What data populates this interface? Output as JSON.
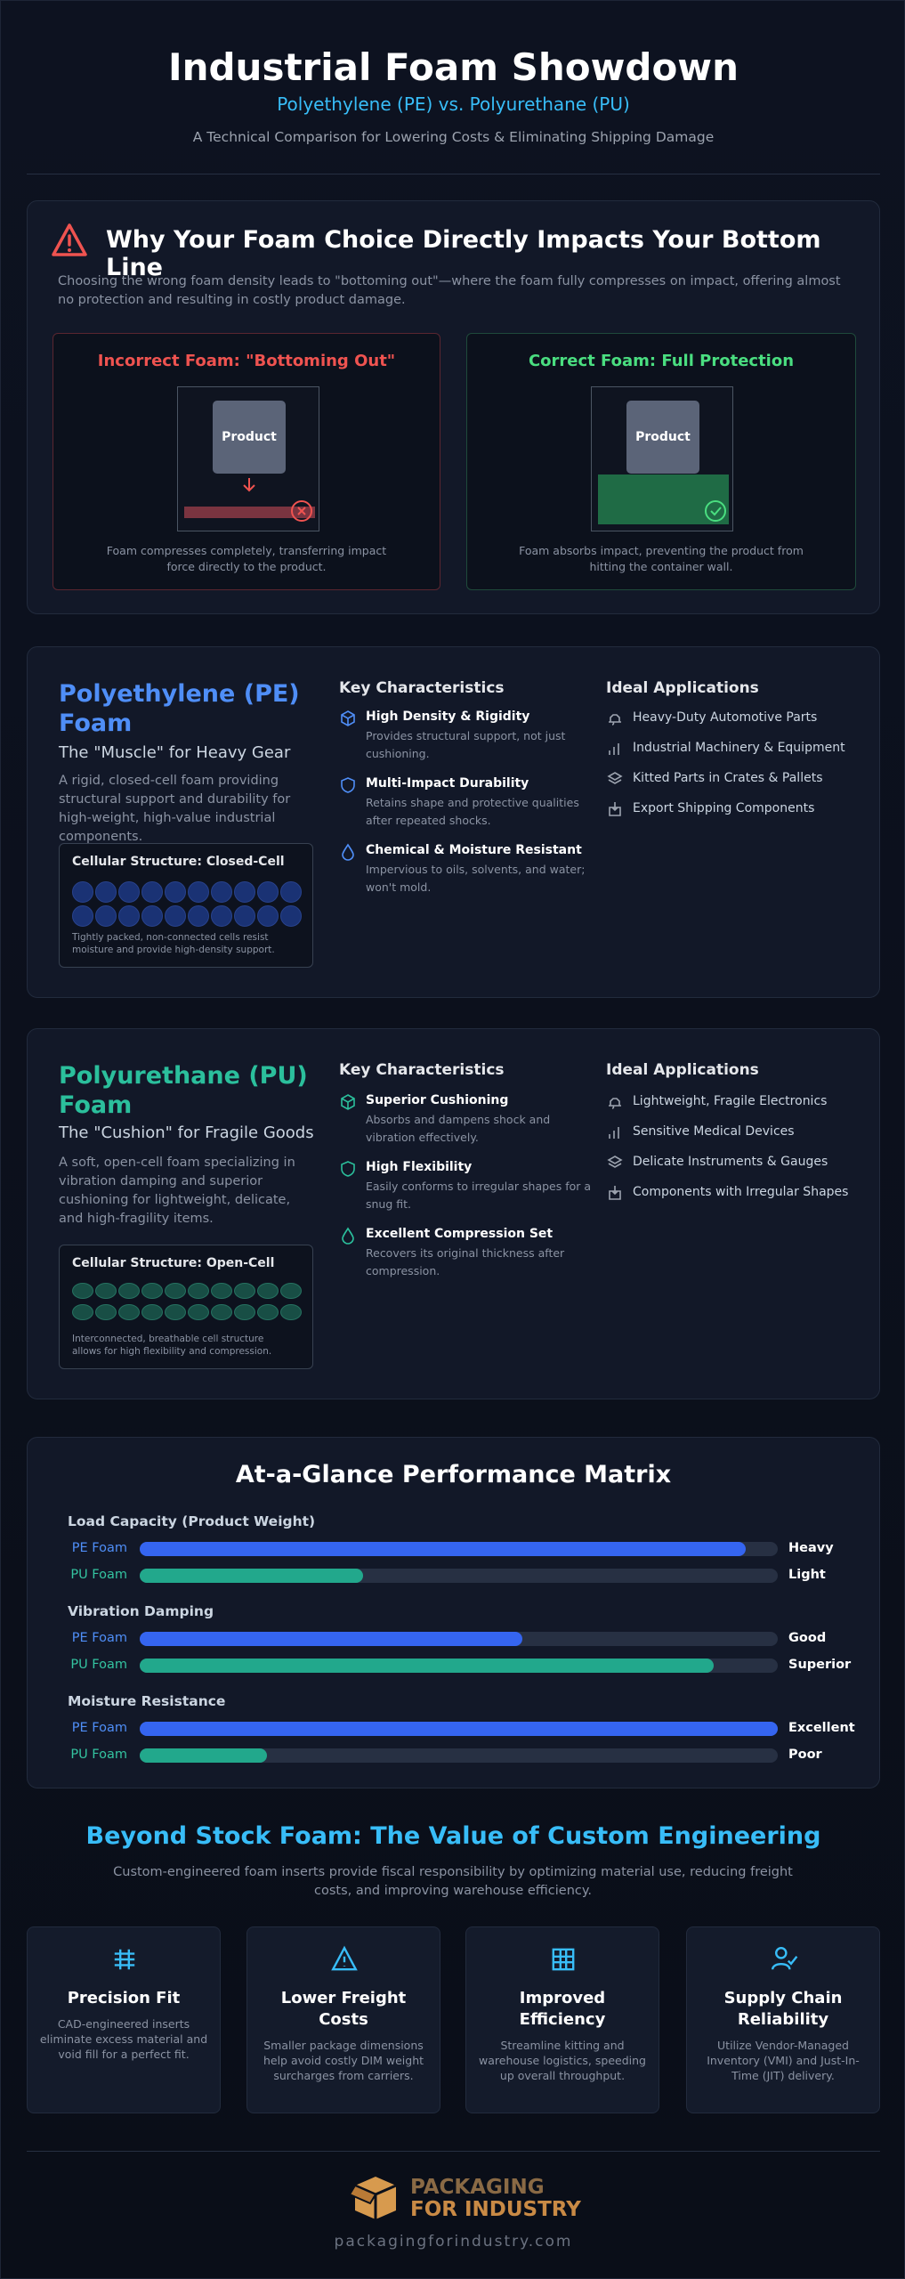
{
  "header": {
    "title": "Industrial Foam Showdown",
    "subtitle": "Polyethylene (PE) vs. Polyurethane (PU)",
    "tagline": "A Technical Comparison for Lowering Costs & Eliminating Shipping Damage"
  },
  "impact": {
    "title": "Why Your Foam Choice Directly Impacts Your Bottom Line",
    "text": "Choosing the wrong foam density leads to \"bottoming out\"—where the foam fully compresses on impact, offering almost no protection and resulting in costly product damage.",
    "incorrect": {
      "title": "Incorrect Foam: \"Bottoming Out\"",
      "product": "Product",
      "caption": "Foam compresses completely, transferring impact force directly to the product."
    },
    "correct": {
      "title": "Correct Foam: Full Protection",
      "product": "Product",
      "caption": "Foam absorbs impact, preventing the product from hitting the container wall."
    }
  },
  "pe": {
    "title": "Polyethylene (PE) Foam",
    "tagline": "The \"Muscle\" for Heavy Gear",
    "text": "A rigid, closed-cell foam providing structural support and durability for high-weight, high-value industrial components.",
    "structure_title": "Cellular Structure: Closed-Cell",
    "structure_caption": "Tightly packed, non-connected cells resist moisture and provide high-density support.",
    "characteristics_title": "Key Characteristics",
    "characteristics": [
      {
        "title": "High Density & Rigidity",
        "text": "Provides structural support, not just cushioning."
      },
      {
        "title": "Multi-Impact Durability",
        "text": "Retains shape and protective qualities after repeated shocks."
      },
      {
        "title": "Chemical & Moisture Resistant",
        "text": "Impervious to oils, solvents, and water; won't mold."
      }
    ],
    "applications_title": "Ideal Applications",
    "applications": [
      "Heavy-Duty Automotive Parts",
      "Industrial Machinery & Equipment",
      "Kitted Parts in Crates & Pallets",
      "Export Shipping Components"
    ]
  },
  "pu": {
    "title": "Polyurethane (PU) Foam",
    "tagline": "The \"Cushion\" for Fragile Goods",
    "text": "A soft, open-cell foam specializing in vibration damping and superior cushioning for lightweight, delicate, and high-fragility items.",
    "structure_title": "Cellular Structure: Open-Cell",
    "structure_caption": "Interconnected, breathable cell structure allows for high flexibility and compression.",
    "characteristics_title": "Key Characteristics",
    "characteristics": [
      {
        "title": "Superior Cushioning",
        "text": "Absorbs and dampens shock and vibration effectively."
      },
      {
        "title": "High Flexibility",
        "text": "Easily conforms to irregular shapes for a snug fit."
      },
      {
        "title": "Excellent Compression Set",
        "text": "Recovers its original thickness after compression."
      }
    ],
    "applications_title": "Ideal Applications",
    "applications": [
      "Lightweight, Fragile Electronics",
      "Sensitive Medical Devices",
      "Delicate Instruments & Gauges",
      "Components with Irregular Shapes"
    ]
  },
  "chart_data": {
    "type": "bar",
    "title": "At-a-Glance Performance Matrix",
    "categories": [
      "Load Capacity (Product Weight)",
      "Vibration Damping",
      "Moisture Resistance"
    ],
    "xlim": [
      0,
      100
    ],
    "series": [
      {
        "name": "PE Foam",
        "color": "#3565f0",
        "values": [
          95,
          60,
          100
        ],
        "value_labels": [
          "Heavy",
          "Good",
          "Excellent"
        ]
      },
      {
        "name": "PU Foam",
        "color": "#22a88c",
        "values": [
          35,
          90,
          20
        ],
        "value_labels": [
          "Light",
          "Superior",
          "Poor"
        ]
      }
    ]
  },
  "beyond": {
    "title": "Beyond Stock Foam: The Value of Custom Engineering",
    "text": "Custom-engineered foam inserts provide fiscal responsibility by optimizing material use, reducing freight costs, and improving warehouse efficiency.",
    "cards": [
      {
        "title": "Precision Fit",
        "text": "CAD-engineered inserts eliminate excess material and void fill for a perfect fit."
      },
      {
        "title": "Lower Freight Costs",
        "text": "Smaller package dimensions help avoid costly DIM weight surcharges from carriers."
      },
      {
        "title": "Improved Efficiency",
        "text": "Streamline kitting and warehouse logistics, speeding up overall throughput."
      },
      {
        "title": "Supply Chain Reliability",
        "text": "Utilize Vendor-Managed Inventory (VMI) and Just-In-Time (JIT) delivery."
      }
    ]
  },
  "footer": {
    "logo_line1": "PACKAGING",
    "logo_line2": "FOR INDUSTRY",
    "url": "packagingforindustry.com"
  }
}
